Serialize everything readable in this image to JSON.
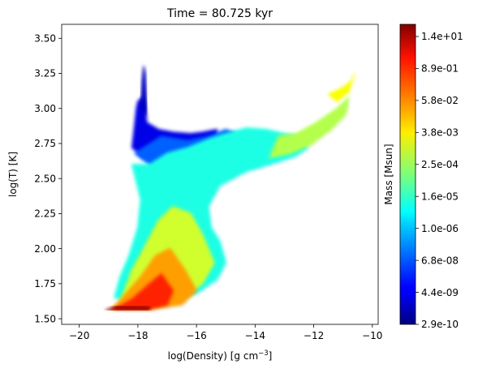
{
  "chart_data": {
    "type": "heatmap",
    "title": "Time = 80.725 kyr",
    "xlabel": "log(Density) [g cm",
    "xlabel_sup": "−3",
    "xlabel_close": "]",
    "ylabel": "log(T) [K]",
    "xlim": [
      -20.6,
      -9.8
    ],
    "ylim": [
      1.46,
      3.6
    ],
    "xticks": [
      {
        "value": -20,
        "label": "−20"
      },
      {
        "value": -18,
        "label": "−18"
      },
      {
        "value": -16,
        "label": "−16"
      },
      {
        "value": -14,
        "label": "−14"
      },
      {
        "value": -12,
        "label": "−12"
      },
      {
        "value": -10,
        "label": "−10"
      }
    ],
    "yticks": [
      {
        "value": 1.5,
        "label": "1.50"
      },
      {
        "value": 1.75,
        "label": "1.75"
      },
      {
        "value": 2.0,
        "label": "2.00"
      },
      {
        "value": 2.25,
        "label": "2.25"
      },
      {
        "value": 2.5,
        "label": "2.50"
      },
      {
        "value": 2.75,
        "label": "2.75"
      },
      {
        "value": 3.0,
        "label": "3.00"
      },
      {
        "value": 3.25,
        "label": "3.25"
      },
      {
        "value": 3.5,
        "label": "3.50"
      }
    ],
    "colorbar": {
      "label": "Mass [Msun]",
      "colormap": "jet",
      "scale": "log",
      "ticks": [
        "2.9e-10",
        "4.4e-09",
        "6.8e-08",
        "1.0e-06",
        "1.6e-05",
        "2.5e-04",
        "3.8e-03",
        "5.8e-02",
        "8.9e-01",
        "1.4e+01"
      ]
    },
    "regions": [
      {
        "name": "plume",
        "level": 0.1,
        "poly": [
          [
            -18.2,
            2.72
          ],
          [
            -18.1,
            2.9
          ],
          [
            -18.05,
            3.0
          ],
          [
            -18.0,
            3.05
          ],
          [
            -17.85,
            3.08
          ],
          [
            -17.75,
            3.02
          ],
          [
            -17.7,
            2.9
          ],
          [
            -17.3,
            2.85
          ],
          [
            -16.8,
            2.83
          ],
          [
            -16.2,
            2.82
          ],
          [
            -15.8,
            2.83
          ],
          [
            -15.3,
            2.85
          ],
          [
            -15.3,
            2.8
          ],
          [
            -16.2,
            2.72
          ],
          [
            -17.0,
            2.68
          ],
          [
            -17.8,
            2.65
          ]
        ]
      },
      {
        "name": "spike",
        "level": 0.06,
        "poly": [
          [
            -17.9,
            3.0
          ],
          [
            -17.85,
            3.2
          ],
          [
            -17.8,
            3.3
          ],
          [
            -17.75,
            3.25
          ],
          [
            -17.7,
            3.05
          ],
          [
            -17.72,
            2.95
          ]
        ]
      },
      {
        "name": "blue-band",
        "level": 0.22,
        "poly": [
          [
            -18.1,
            2.68
          ],
          [
            -17.8,
            2.72
          ],
          [
            -17.2,
            2.8
          ],
          [
            -16.3,
            2.77
          ],
          [
            -15.6,
            2.8
          ],
          [
            -15.0,
            2.85
          ],
          [
            -14.6,
            2.82
          ],
          [
            -15.0,
            2.72
          ],
          [
            -16.2,
            2.65
          ],
          [
            -17.5,
            2.58
          ]
        ]
      },
      {
        "name": "main-body",
        "level": 0.4,
        "poly": [
          [
            -18.2,
            2.6
          ],
          [
            -17.6,
            2.6
          ],
          [
            -17.0,
            2.68
          ],
          [
            -16.3,
            2.72
          ],
          [
            -15.6,
            2.78
          ],
          [
            -15.0,
            2.82
          ],
          [
            -14.3,
            2.86
          ],
          [
            -13.6,
            2.85
          ],
          [
            -13.0,
            2.82
          ],
          [
            -12.5,
            2.8
          ],
          [
            -12.2,
            2.72
          ],
          [
            -12.6,
            2.66
          ],
          [
            -13.5,
            2.6
          ],
          [
            -14.3,
            2.55
          ],
          [
            -15.2,
            2.45
          ],
          [
            -15.6,
            2.3
          ],
          [
            -15.5,
            2.15
          ],
          [
            -15.2,
            2.05
          ],
          [
            -15.0,
            1.9
          ],
          [
            -15.3,
            1.78
          ],
          [
            -16.0,
            1.68
          ],
          [
            -17.0,
            1.62
          ],
          [
            -18.0,
            1.62
          ],
          [
            -18.8,
            1.65
          ],
          [
            -18.6,
            1.8
          ],
          [
            -18.3,
            1.95
          ],
          [
            -18.0,
            2.15
          ],
          [
            -17.9,
            2.35
          ]
        ]
      },
      {
        "name": "right-tail",
        "level": 0.55,
        "poly": [
          [
            -13.2,
            2.8
          ],
          [
            -12.6,
            2.82
          ],
          [
            -11.9,
            2.9
          ],
          [
            -11.2,
            3.0
          ],
          [
            -10.8,
            3.08
          ],
          [
            -10.9,
            2.96
          ],
          [
            -11.4,
            2.85
          ],
          [
            -12.1,
            2.74
          ],
          [
            -12.8,
            2.68
          ],
          [
            -13.5,
            2.65
          ]
        ]
      },
      {
        "name": "green-core",
        "level": 0.58,
        "poly": [
          [
            -18.6,
            1.62
          ],
          [
            -17.5,
            1.62
          ],
          [
            -16.5,
            1.65
          ],
          [
            -15.8,
            1.75
          ],
          [
            -15.4,
            1.9
          ],
          [
            -15.8,
            2.1
          ],
          [
            -16.2,
            2.25
          ],
          [
            -16.8,
            2.3
          ],
          [
            -17.3,
            2.2
          ],
          [
            -17.8,
            2.0
          ],
          [
            -18.2,
            1.85
          ]
        ]
      },
      {
        "name": "yellow-core",
        "level": 0.72,
        "poly": [
          [
            -18.9,
            1.57
          ],
          [
            -17.5,
            1.57
          ],
          [
            -16.5,
            1.6
          ],
          [
            -16.0,
            1.7
          ],
          [
            -16.4,
            1.85
          ],
          [
            -16.9,
            2.0
          ],
          [
            -17.4,
            1.95
          ],
          [
            -17.9,
            1.8
          ],
          [
            -18.4,
            1.68
          ]
        ]
      },
      {
        "name": "orange-core",
        "level": 0.84,
        "poly": [
          [
            -18.8,
            1.57
          ],
          [
            -17.6,
            1.57
          ],
          [
            -17.0,
            1.6
          ],
          [
            -16.8,
            1.7
          ],
          [
            -17.2,
            1.82
          ],
          [
            -17.6,
            1.75
          ],
          [
            -18.2,
            1.64
          ]
        ]
      },
      {
        "name": "red-ridge",
        "level": 0.98,
        "poly": [
          [
            -19.1,
            1.562
          ],
          [
            -17.6,
            1.562
          ],
          [
            -17.6,
            1.585
          ],
          [
            -18.7,
            1.59
          ]
        ]
      },
      {
        "name": "tip-top",
        "level": 0.62,
        "poly": [
          [
            -11.5,
            3.1
          ],
          [
            -11.0,
            3.15
          ],
          [
            -10.7,
            3.2
          ],
          [
            -10.6,
            3.25
          ],
          [
            -10.8,
            3.12
          ],
          [
            -11.2,
            3.05
          ]
        ]
      }
    ]
  }
}
